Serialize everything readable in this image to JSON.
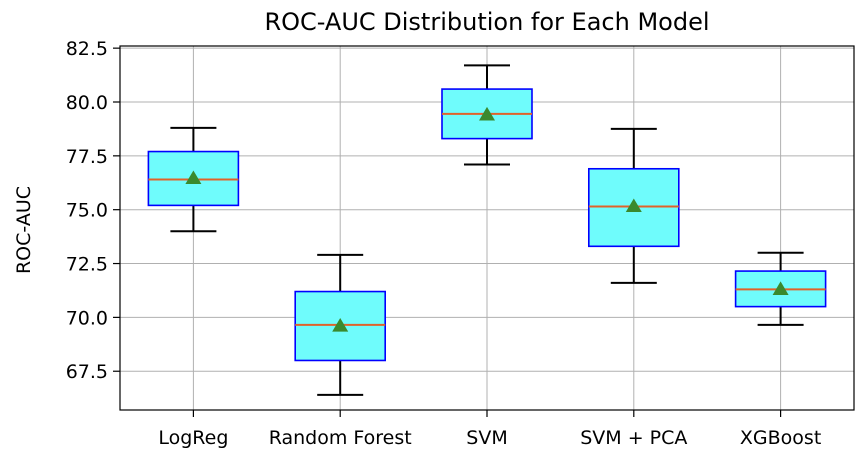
{
  "chart_data": {
    "type": "box",
    "title": "ROC-AUC Distribution for Each Model",
    "xlabel": "",
    "ylabel": "ROC-AUC",
    "ylim": [
      65.7,
      82.6
    ],
    "yticks": [
      "67.5",
      "70.0",
      "72.5",
      "75.0",
      "77.5",
      "80.0",
      "82.5"
    ],
    "grid": true,
    "colors": {
      "box_fill": "#6ffcfc",
      "box_edge": "#0000ff",
      "median": "#e0622a",
      "mean_marker": "#3a8a2e"
    },
    "categories": [
      "LogReg",
      "Random Forest",
      "SVM",
      "SVM + PCA",
      "XGBoost"
    ],
    "boxes": [
      {
        "name": "LogReg",
        "whislo": 74.0,
        "q1": 75.2,
        "med": 76.4,
        "q3": 77.7,
        "whishi": 78.8,
        "mean": 76.45
      },
      {
        "name": "Random Forest",
        "whislo": 66.4,
        "q1": 68.0,
        "med": 69.65,
        "q3": 71.2,
        "whishi": 72.9,
        "mean": 69.6
      },
      {
        "name": "SVM",
        "whislo": 77.1,
        "q1": 78.3,
        "med": 79.45,
        "q3": 80.6,
        "whishi": 81.7,
        "mean": 79.4
      },
      {
        "name": "SVM + PCA",
        "whislo": 71.6,
        "q1": 73.3,
        "med": 75.15,
        "q3": 76.9,
        "whishi": 78.75,
        "mean": 75.15
      },
      {
        "name": "XGBoost",
        "whislo": 69.65,
        "q1": 70.5,
        "med": 71.3,
        "q3": 72.15,
        "whishi": 73.0,
        "mean": 71.3
      }
    ]
  }
}
